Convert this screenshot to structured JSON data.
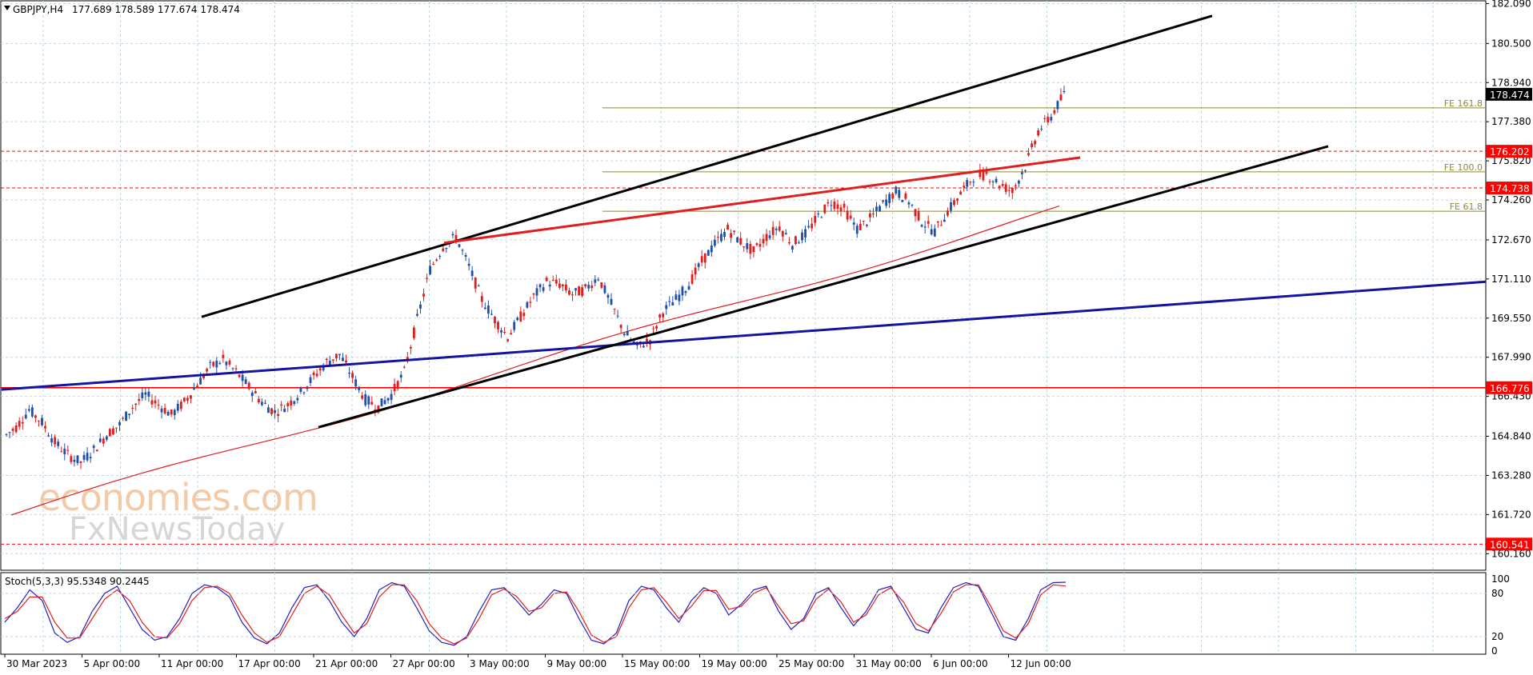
{
  "header": {
    "symbol": "GBPJPY,H4",
    "ohlc": "177.689 178.589 177.674 178.474"
  },
  "stoch_header": "Stoch(5,3,3) 95.5348 90.2445",
  "watermark": {
    "line1": "economies.com",
    "line2": "FxNewsToday"
  },
  "colors": {
    "bull": "#1f4fa8",
    "bear": "#e01e1e",
    "grid": "#b7dbe0",
    "black_channel": "#000000",
    "red_line": "#e01e1e",
    "blue_line": "#1414a0",
    "fe_line": "#8a8a3a",
    "ma": "#e01e1e",
    "stoch_k": "#2020c0",
    "stoch_d": "#e01e1e",
    "label_red": "#ff0000",
    "label_black": "#000000"
  },
  "chart_data": [
    {
      "type": "candlestick",
      "title": "GBPJPY,H4",
      "y_ticks": [
        "182.090",
        "180.500",
        "178.940",
        "177.380",
        "175.820",
        "174.260",
        "172.670",
        "171.110",
        "169.550",
        "167.990",
        "166.430",
        "164.840",
        "163.280",
        "161.720",
        "160.160"
      ],
      "x_ticks": [
        "30 Mar 2023",
        "5 Apr 00:00",
        "11 Apr 00:00",
        "17 Apr 00:00",
        "21 Apr 00:00",
        "27 Apr 00:00",
        "3 May 00:00",
        "9 May 00:00",
        "15 May 00:00",
        "19 May 00:00",
        "25 May 00:00",
        "31 May 00:00",
        "6 Jun 00:00",
        "12 Jun 00:00"
      ],
      "ylim": [
        159.5,
        182.2
      ],
      "current_price": "178.474",
      "levels": [
        {
          "price": 176.202,
          "label": "176.202",
          "style": "dashed",
          "color": "red"
        },
        {
          "price": 174.738,
          "label": "174.738",
          "style": "dashed",
          "color": "red"
        },
        {
          "price": 166.776,
          "label": "166.776",
          "style": "solid",
          "color": "red"
        },
        {
          "price": 160.541,
          "label": "160.541",
          "style": "dashed",
          "color": "red"
        }
      ],
      "fibonacci": [
        {
          "label": "FE 161.8",
          "price": 177.93
        },
        {
          "label": "FE 100.0",
          "price": 175.38
        },
        {
          "label": "FE 61.8",
          "price": 173.81
        }
      ],
      "closes_path": [
        165.2,
        165.9,
        165.4,
        164.6,
        164.1,
        163.8,
        164.3,
        164.9,
        165.3,
        166.0,
        166.5,
        166.1,
        165.7,
        166.2,
        166.9,
        167.6,
        167.9,
        167.4,
        166.8,
        166.2,
        165.8,
        166.1,
        166.6,
        167.2,
        167.8,
        168.1,
        167.2,
        166.3,
        166.0,
        166.5,
        167.4,
        169.5,
        171.5,
        172.4,
        172.8,
        171.6,
        170.3,
        169.5,
        168.8,
        169.6,
        170.4,
        171.0,
        170.9,
        170.5,
        170.7,
        171.2,
        170.1,
        169.0,
        168.4,
        168.7,
        169.8,
        170.3,
        170.9,
        171.8,
        172.5,
        173.1,
        172.6,
        172.2,
        172.8,
        173.2,
        172.5,
        172.9,
        173.6,
        174.2,
        173.9,
        173.1,
        173.5,
        174.1,
        174.6,
        174.2,
        173.4,
        173.0,
        173.8,
        174.5,
        175.2,
        175.3,
        174.9,
        174.6,
        175.6,
        177.0,
        177.6,
        178.474
      ],
      "indicators": [
        {
          "name": "moving average",
          "type": "line"
        },
        {
          "name": "upper channel",
          "type": "trendline"
        },
        {
          "name": "lower channel",
          "type": "trendline"
        },
        {
          "name": "red resistance",
          "type": "trendline"
        },
        {
          "name": "blue support",
          "type": "trendline"
        }
      ]
    },
    {
      "type": "line",
      "title": "Stoch(5,3,3) 95.5348 90.2445",
      "y_ticks": [
        "100",
        "80",
        "20",
        "0"
      ],
      "ylim": [
        0,
        100
      ],
      "series": [
        {
          "name": "%K",
          "values": [
            40,
            60,
            85,
            70,
            25,
            12,
            20,
            55,
            80,
            90,
            60,
            30,
            15,
            20,
            45,
            80,
            92,
            88,
            75,
            40,
            18,
            10,
            25,
            60,
            88,
            92,
            70,
            40,
            20,
            45,
            85,
            95,
            90,
            60,
            28,
            12,
            8,
            20,
            55,
            85,
            88,
            70,
            50,
            65,
            85,
            80,
            45,
            15,
            10,
            25,
            70,
            90,
            85,
            60,
            40,
            70,
            88,
            80,
            50,
            65,
            85,
            90,
            55,
            30,
            45,
            80,
            88,
            60,
            35,
            55,
            85,
            90,
            60,
            30,
            25,
            60,
            88,
            95,
            90,
            55,
            20,
            15,
            45,
            85,
            95,
            95.5
          ]
        },
        {
          "name": "%D",
          "values": [
            45,
            55,
            75,
            75,
            40,
            18,
            18,
            45,
            72,
            85,
            70,
            40,
            20,
            18,
            38,
            70,
            88,
            90,
            80,
            50,
            25,
            12,
            20,
            50,
            80,
            90,
            78,
            50,
            25,
            38,
            75,
            92,
            92,
            70,
            38,
            18,
            10,
            18,
            45,
            78,
            86,
            76,
            55,
            60,
            80,
            82,
            55,
            22,
            12,
            20,
            60,
            85,
            88,
            68,
            45,
            62,
            84,
            84,
            58,
            62,
            80,
            88,
            62,
            38,
            42,
            72,
            86,
            68,
            40,
            50,
            78,
            88,
            68,
            38,
            28,
            52,
            82,
            92,
            92,
            62,
            28,
            18,
            38,
            78,
            92,
            90.2
          ]
        }
      ]
    }
  ]
}
